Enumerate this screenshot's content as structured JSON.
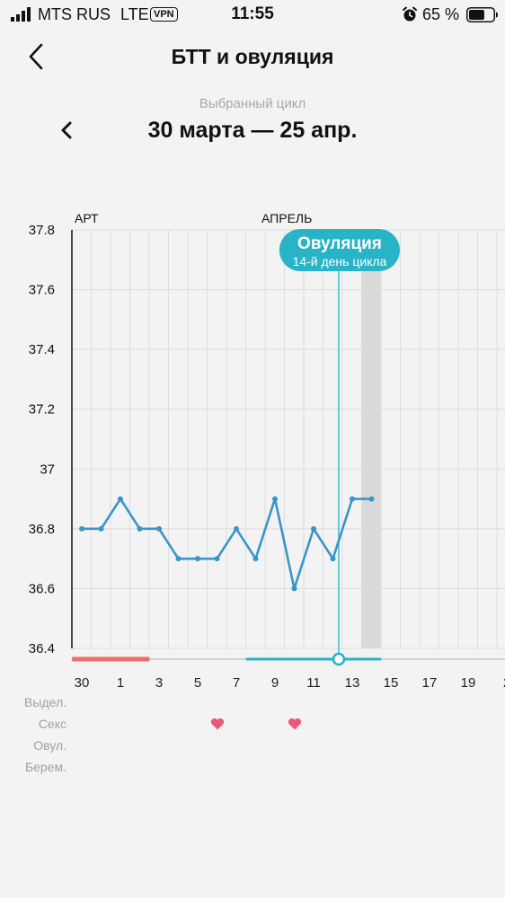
{
  "status_bar": {
    "carrier": "MTS RUS",
    "network": "LTE",
    "vpn": "VPN",
    "time": "11:55",
    "battery_percent": "65 %",
    "battery_level": 0.65
  },
  "header": {
    "title": "БТТ и овуляция"
  },
  "cycle": {
    "caption": "Выбранный цикл",
    "range": "30 марта — 25 апр."
  },
  "chart_data": {
    "type": "line",
    "month_labels": [
      "АРТ",
      "АПРЕЛЬ"
    ],
    "ylim": [
      36.4,
      37.8
    ],
    "y_ticks": [
      "37.8",
      "37.6",
      "37.4",
      "37.2",
      "37",
      "36.8",
      "36.6",
      "36.4"
    ],
    "x_tick_labels": [
      "30",
      "1",
      "3",
      "5",
      "7",
      "9",
      "11",
      "13",
      "15",
      "17",
      "19",
      "2"
    ],
    "series": [
      {
        "values": [
          36.8,
          36.8,
          36.9,
          36.8,
          36.8,
          36.7,
          36.7,
          36.7,
          36.8,
          36.7,
          36.9,
          36.6,
          36.8,
          36.7,
          36.9,
          36.9
        ]
      }
    ],
    "ovulation": {
      "label": "Овуляция",
      "sublabel": "14-й день цикла",
      "day_index": 13.3
    },
    "highlight_day_index": 15,
    "period_days": [
      0,
      4
    ],
    "fertile_days": [
      9,
      16
    ],
    "grid": true,
    "colors": {
      "line": "#3a96c8",
      "ovulation": "#29b3c6",
      "period": "#f06a6a",
      "highlight": "#dadada"
    }
  },
  "legend_rows": {
    "discharge": "Выдел.",
    "sex": "Секс",
    "ovulation": "Овул.",
    "pregnancy": "Берем."
  },
  "sex_days": [
    7,
    11
  ],
  "heart_color": "#ea5a76"
}
